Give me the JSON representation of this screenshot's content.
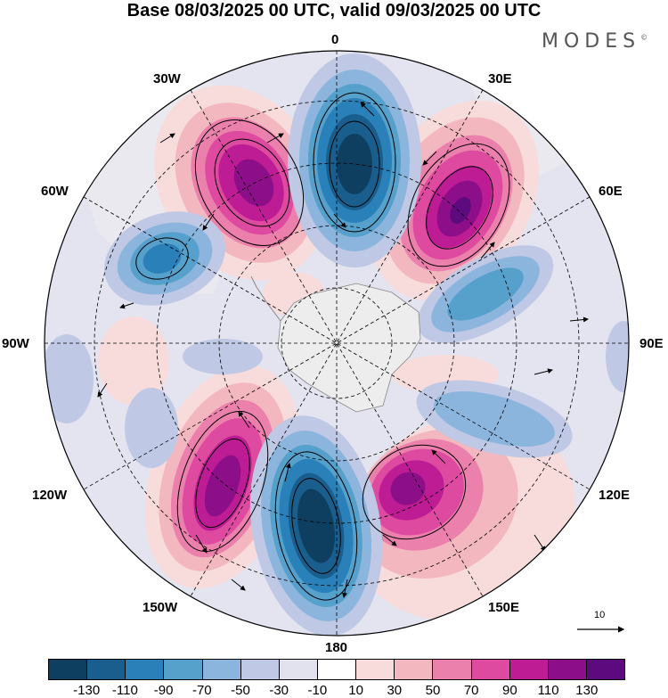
{
  "title": "Base 08/03/2025 00 UTC, valid 09/03/2025 00 UTC",
  "brand": {
    "name": "MODES",
    "mark": "©"
  },
  "longitude_labels": {
    "lon_0": "0",
    "lon_30e": "30E",
    "lon_60e": "60E",
    "lon_90e": "90E",
    "lon_120e": "120E",
    "lon_150e": "150E",
    "lon_180": "180",
    "lon_150w": "150W",
    "lon_120w": "120W",
    "lon_90w": "90W",
    "lon_60w": "60W",
    "lon_30w": "30W"
  },
  "colorbar": {
    "colors": [
      "#0e3f60",
      "#195e8c",
      "#2a80b8",
      "#56a0cc",
      "#8cb5dd",
      "#bfc8e4",
      "#e2e2ef",
      "#ffffff",
      "#f8dcdc",
      "#f3b7bf",
      "#ec80ad",
      "#dd4aa0",
      "#be1c95",
      "#8c0e88",
      "#5c0a7e"
    ],
    "ticks": [
      "-130",
      "-110",
      "-90",
      "-70",
      "-50",
      "-30",
      "-10",
      "10",
      "30",
      "50",
      "70",
      "90",
      "110",
      "130"
    ]
  },
  "reference_vector": {
    "label": "10"
  },
  "colors": {
    "land": "#eeeeee",
    "coast": "#888888",
    "antarctica": "#ededed"
  }
}
